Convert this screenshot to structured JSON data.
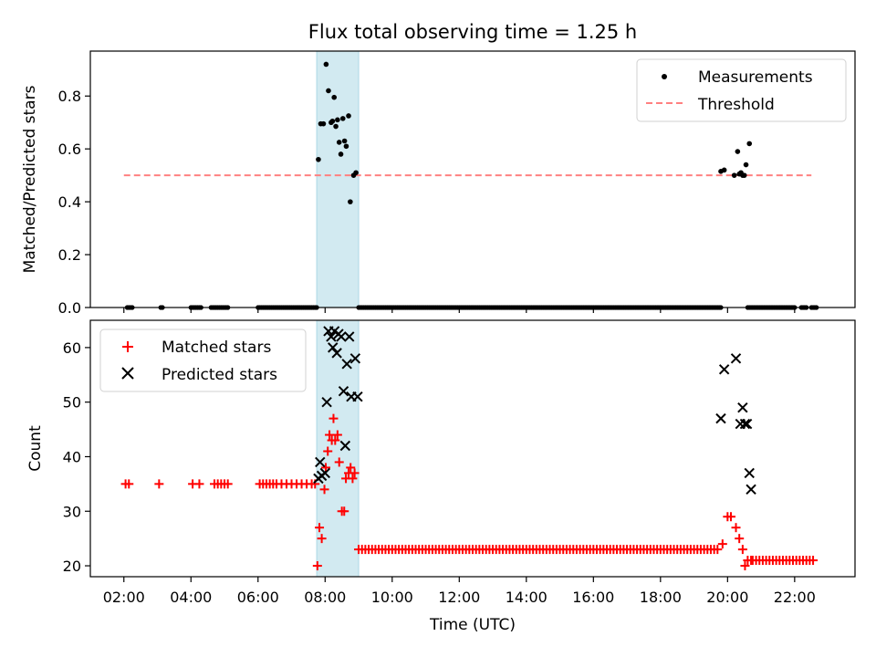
{
  "chart_data": [
    {
      "type": "scatter",
      "title": "Flux total observing time = 1.25 h",
      "ylabel": "Matched/Predicted stars",
      "ylim": [
        0,
        0.97
      ],
      "xlim": [
        1.0,
        23.8
      ],
      "yticks": [
        0.0,
        0.2,
        0.4,
        0.6,
        0.8
      ],
      "ytick_labels": [
        "0.0",
        "0.2",
        "0.4",
        "0.6",
        "0.8"
      ],
      "legend_position": "top-right",
      "shaded_interval": [
        7.75,
        9.0
      ],
      "shade_color": "#add8e6",
      "series": [
        {
          "name": "Measurements",
          "color": "#000000",
          "marker": "dot",
          "x": [
            7.8,
            7.87,
            7.95,
            8.03,
            8.1,
            8.18,
            8.22,
            8.27,
            8.32,
            8.37,
            8.42,
            8.47,
            8.53,
            8.58,
            8.63,
            8.7,
            8.75,
            8.85,
            8.92,
            19.8,
            19.9,
            20.2,
            20.3,
            20.35,
            20.4,
            20.45,
            20.5,
            20.55,
            20.65
          ],
          "y": [
            0.56,
            0.695,
            0.695,
            0.92,
            0.82,
            0.7,
            0.705,
            0.795,
            0.685,
            0.71,
            0.625,
            0.58,
            0.715,
            0.63,
            0.61,
            0.725,
            0.4,
            0.5,
            0.51,
            0.515,
            0.52,
            0.5,
            0.59,
            0.505,
            0.51,
            0.5,
            0.5,
            0.54,
            0.62
          ]
        },
        {
          "name": "Threshold",
          "color": "#ff8080",
          "style": "dashed",
          "x": [
            2.0,
            22.5
          ],
          "y": [
            0.5,
            0.5
          ]
        }
      ],
      "zero_segments": [
        [
          2.1,
          2.25
        ],
        [
          3.1,
          3.15
        ],
        [
          4.0,
          4.3
        ],
        [
          4.6,
          5.1
        ],
        [
          6.0,
          7.75
        ],
        [
          9.0,
          19.8
        ],
        [
          20.6,
          22.0
        ],
        [
          22.2,
          22.35
        ],
        [
          22.5,
          22.65
        ]
      ]
    },
    {
      "type": "scatter",
      "ylabel": "Count",
      "xlabel": "Time (UTC)",
      "ylim": [
        18,
        65
      ],
      "xlim": [
        1.0,
        23.8
      ],
      "yticks": [
        20,
        30,
        40,
        50,
        60
      ],
      "ytick_labels": [
        "20",
        "30",
        "40",
        "50",
        "60"
      ],
      "xticks": [
        2,
        4,
        6,
        8,
        10,
        12,
        14,
        16,
        18,
        20,
        22
      ],
      "xtick_labels": [
        "02:00",
        "04:00",
        "06:00",
        "08:00",
        "10:00",
        "12:00",
        "14:00",
        "16:00",
        "18:00",
        "20:00",
        "22:00"
      ],
      "legend_position": "top-left",
      "shaded_interval": [
        7.75,
        9.0
      ],
      "series": [
        {
          "name": "Matched stars",
          "color": "#ff0000",
          "marker": "plus",
          "x": [
            2.05,
            2.15,
            3.05,
            4.05,
            4.25,
            4.7,
            4.8,
            4.9,
            5.0,
            5.1,
            6.05,
            6.15,
            6.25,
            6.35,
            6.45,
            6.55,
            6.7,
            6.85,
            7.0,
            7.15,
            7.3,
            7.45,
            7.6,
            7.7,
            7.77,
            7.83,
            7.9,
            7.98,
            8.02,
            8.08,
            8.13,
            8.2,
            8.25,
            8.3,
            8.37,
            8.42,
            8.5,
            8.57,
            8.62,
            8.7,
            8.76,
            8.82,
            8.88,
            19.85,
            20.0,
            20.1,
            20.25,
            20.35,
            20.45,
            20.52,
            20.6,
            20.7
          ],
          "y": [
            35,
            35,
            35,
            35,
            35,
            35,
            35,
            35,
            35,
            35,
            35,
            35,
            35,
            35,
            35,
            35,
            35,
            35,
            35,
            35,
            35,
            35,
            35,
            35,
            20,
            27,
            25,
            34,
            38,
            41,
            44,
            43,
            47,
            43,
            44,
            39,
            30,
            30,
            36,
            37,
            38,
            36,
            37,
            24,
            29,
            29,
            27,
            25,
            23,
            20,
            21,
            21
          ]
        },
        {
          "name": "Predicted stars",
          "color": "#000000",
          "marker": "x",
          "x": [
            7.8,
            7.85,
            7.9,
            8.0,
            8.05,
            8.1,
            8.18,
            8.23,
            8.28,
            8.35,
            8.4,
            8.48,
            8.55,
            8.6,
            8.65,
            8.72,
            8.78,
            8.9,
            8.97,
            19.8,
            19.9,
            20.25,
            20.38,
            20.45,
            20.52,
            20.58,
            20.65
          ],
          "y": [
            36,
            39,
            36.5,
            37,
            50,
            63,
            62,
            60,
            63,
            59,
            62.5,
            62,
            52,
            42,
            57,
            62,
            51,
            58,
            51,
            47,
            56,
            58,
            46,
            49,
            46,
            46,
            37
          ]
        }
      ],
      "flat_segments": [
        {
          "x_from": 9.0,
          "x_to": 19.75,
          "y": 23
        },
        {
          "x_from": 20.75,
          "x_to": 22.6,
          "y": 21
        }
      ],
      "extra_predicted": [
        [
          20.7,
          34
        ]
      ]
    }
  ]
}
